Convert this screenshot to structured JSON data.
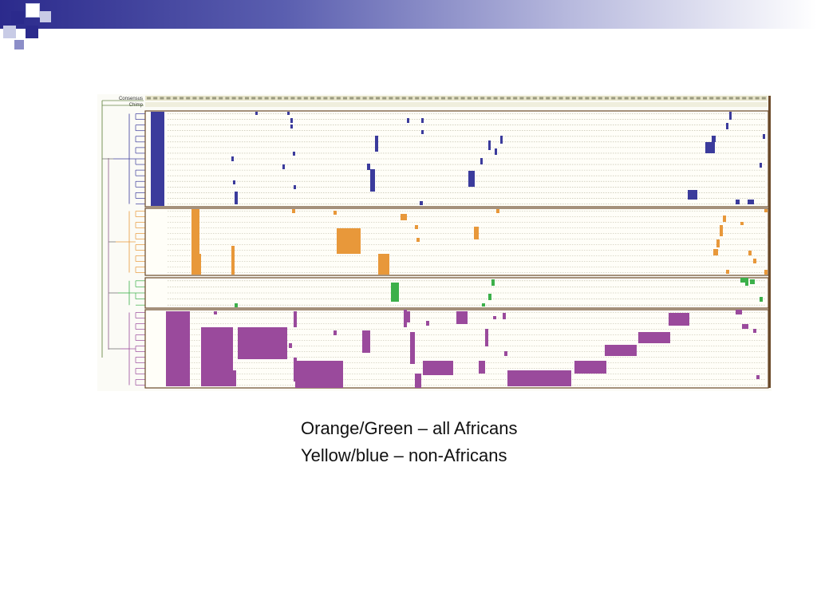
{
  "figure": {
    "labels": {
      "consensus": "Consensus",
      "chimp": "Chimp"
    },
    "group_colors": {
      "non_african_blue": "#3b3b9c",
      "african_orange": "#e8983a",
      "african_green": "#3cb04a",
      "purple": "#9a4a9c"
    }
  },
  "caption": {
    "line1": "Orange/Green – all Africans",
    "line2": "Yellow/blue – non-Africans"
  }
}
